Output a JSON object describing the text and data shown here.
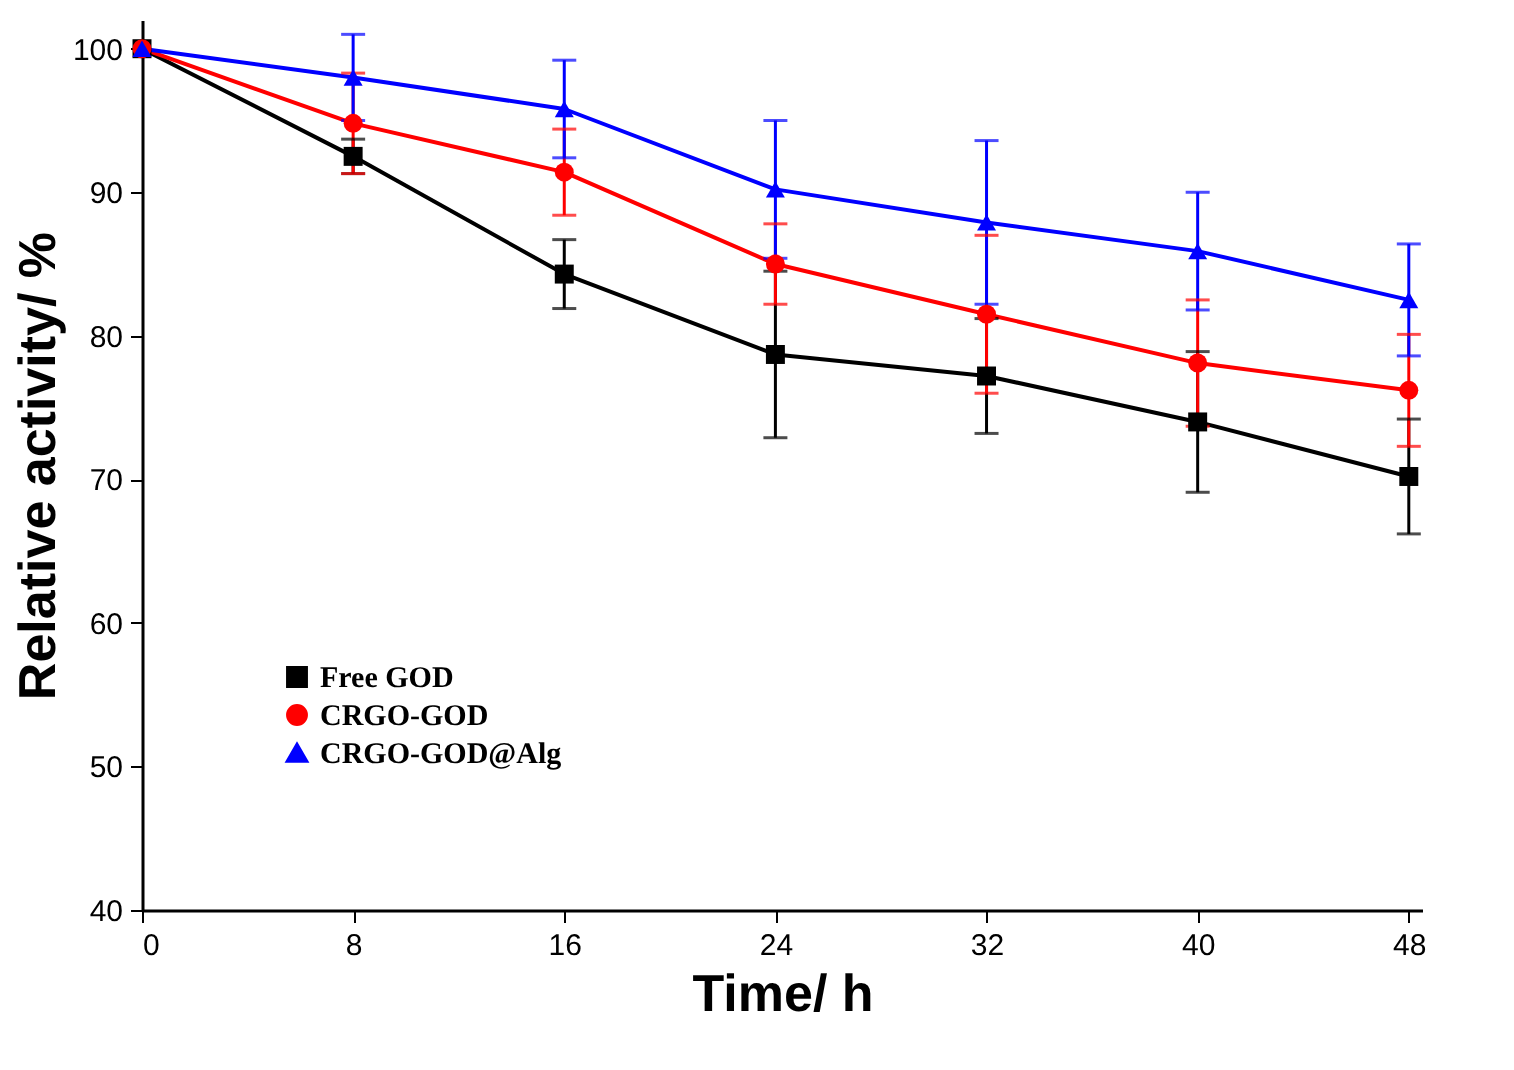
{
  "chart_data": {
    "type": "line",
    "xlabel": "Time/ h",
    "ylabel": "Relative activity/ %",
    "x": [
      0,
      8,
      16,
      24,
      32,
      40,
      48
    ],
    "xlim": [
      0,
      48.5
    ],
    "xticks": [
      0,
      8,
      16,
      24,
      32,
      40,
      48
    ],
    "ylim": [
      40,
      102
    ],
    "yticks": [
      40,
      50,
      60,
      70,
      80,
      90,
      100
    ],
    "grid": false,
    "legend": "bottom left",
    "line_style": "solid",
    "series": [
      {
        "name": "Free GOD",
        "color": "#000000",
        "marker": "square",
        "values": [
          100,
          92.5,
          84.3,
          78.7,
          77.2,
          74.0,
          70.2
        ],
        "errors": [
          null,
          1.2,
          2.4,
          5.8,
          4.0,
          4.9,
          4.0
        ]
      },
      {
        "name": "CRGO-GOD",
        "color": "#ff0000",
        "marker": "circle",
        "values": [
          100,
          94.8,
          91.4,
          85.0,
          81.5,
          78.1,
          76.2
        ],
        "errors": [
          null,
          3.5,
          3.0,
          2.8,
          5.5,
          4.4,
          3.9
        ]
      },
      {
        "name": "CRGO-GOD@Alg",
        "color": "#0000ff",
        "marker": "triangle",
        "values": [
          100,
          98.0,
          95.8,
          90.2,
          87.9,
          85.9,
          82.5
        ],
        "errors": [
          null,
          3.0,
          3.4,
          4.8,
          5.7,
          4.1,
          3.9
        ]
      }
    ]
  }
}
